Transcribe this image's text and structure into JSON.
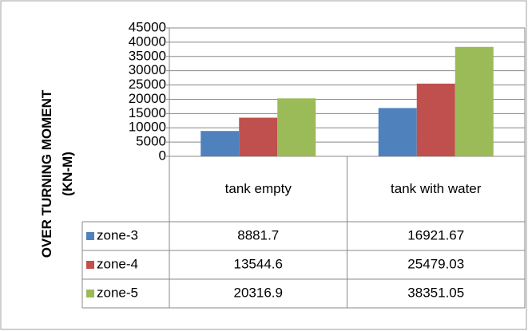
{
  "chart_data": {
    "type": "bar",
    "y_label": [
      "OVER TURNING MOMENT",
      "(KN-M)"
    ],
    "categories": [
      "tank empty",
      "tank with water"
    ],
    "series": [
      {
        "name": "zone-3",
        "color": "#4f81bd",
        "values": [
          8881.7,
          16921.67
        ]
      },
      {
        "name": "zone-4",
        "color": "#c0504d",
        "values": [
          13544.6,
          25479.03
        ]
      },
      {
        "name": "zone-5",
        "color": "#9bbb59",
        "values": [
          20316.9,
          38351.05
        ]
      }
    ],
    "ylim": [
      0,
      45000
    ],
    "yticks": [
      0,
      5000,
      10000,
      15000,
      20000,
      25000,
      30000,
      35000,
      40000,
      45000
    ],
    "grid": true,
    "data_table": true
  }
}
